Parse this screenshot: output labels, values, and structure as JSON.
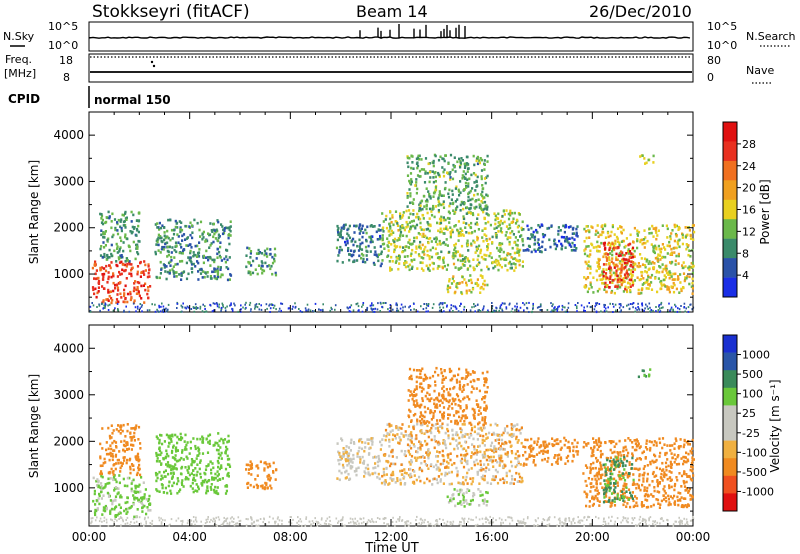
{
  "header": {
    "station": "Stokkseyri (fitACF)",
    "beam": "Beam 14",
    "date": "26/Dec/2010"
  },
  "panels": {
    "nsky_label": "N.Sky",
    "nsky_ticks": [
      "10^5",
      "10^0"
    ],
    "nsearch_label": "N.Search",
    "nsearch_ticks": [
      "10^5",
      "10^0"
    ],
    "freq_label": "Freq.",
    "freq_unit": "[MHz]",
    "freq_ticks": [
      "18",
      "8"
    ],
    "nave_label": "Nave",
    "nave_ticks": [
      "80",
      "0"
    ],
    "cpid_label": "CPID",
    "cpid_value": "normal 150"
  },
  "colors": {
    "power": [
      "#1a2ee6",
      "#2a52a8",
      "#3a8a6a",
      "#6ab84a",
      "#e8d020",
      "#f0a020",
      "#f07020",
      "#e83020",
      "#e01010"
    ],
    "velocity": [
      "#e01010",
      "#f05020",
      "#f08a20",
      "#f0b040",
      "#c8c8c0",
      "#c8c8c0",
      "#6ac83a",
      "#3a8a5a",
      "#2a56a8",
      "#1a30d0"
    ]
  },
  "chart_data": [
    {
      "type": "heatmap",
      "name": "power",
      "ylabel": "Slant Range [km]",
      "ylim": [
        180,
        4500
      ],
      "yticks": [
        "4000",
        "3000",
        "2000",
        "1000"
      ],
      "xlim": [
        "00:00",
        "24:00"
      ],
      "xticks": [
        "00:00",
        "04:00",
        "08:00",
        "12:00",
        "16:00",
        "20:00",
        "00:00"
      ],
      "colorbar": {
        "label": "Power [dB]",
        "range": [
          0,
          32
        ],
        "ticks": [
          "28",
          "24",
          "20",
          "16",
          "12",
          "8",
          "4"
        ]
      },
      "regions": [
        {
          "t": [
            0.1,
            2.4
          ],
          "r": [
            400,
            1300
          ],
          "v": 26
        },
        {
          "t": [
            0.4,
            2.0
          ],
          "r": [
            1300,
            2400
          ],
          "v": 10
        },
        {
          "t": [
            2.6,
            5.6
          ],
          "r": [
            900,
            2200
          ],
          "v": 9
        },
        {
          "t": [
            6.2,
            7.4
          ],
          "r": [
            1000,
            1600
          ],
          "v": 10
        },
        {
          "t": [
            9.8,
            11.6
          ],
          "r": [
            1200,
            2100
          ],
          "v": 7
        },
        {
          "t": [
            11.6,
            17.2
          ],
          "r": [
            1100,
            2400
          ],
          "v": 14
        },
        {
          "t": [
            12.6,
            15.8
          ],
          "r": [
            2400,
            3600
          ],
          "v": 11
        },
        {
          "t": [
            14.2,
            15.8
          ],
          "r": [
            600,
            1000
          ],
          "v": 16
        },
        {
          "t": [
            17.2,
            19.4
          ],
          "r": [
            1500,
            2100
          ],
          "v": 6
        },
        {
          "t": [
            19.6,
            24.0
          ],
          "r": [
            600,
            2100
          ],
          "v": 16
        },
        {
          "t": [
            20.4,
            21.6
          ],
          "r": [
            700,
            1700
          ],
          "v": 27
        },
        {
          "t": [
            21.8,
            22.4
          ],
          "r": [
            3400,
            3600
          ],
          "v": 14
        }
      ]
    },
    {
      "type": "heatmap",
      "name": "velocity",
      "ylabel": "Slant Range [km]",
      "ylim": [
        180,
        4500
      ],
      "yticks": [
        "4000",
        "3000",
        "2000",
        "1000"
      ],
      "xlim": [
        "00:00",
        "24:00"
      ],
      "xticks": [
        "00:00",
        "04:00",
        "08:00",
        "12:00",
        "16:00",
        "20:00",
        "00:00"
      ],
      "xlabel": "Time UT",
      "colorbar": {
        "label": "Velocity [m s⁻¹]",
        "ticks": [
          "1000",
          "500",
          "100",
          "25",
          "-25",
          "-100",
          "-500",
          "-1000"
        ]
      },
      "regions": [
        {
          "t": [
            0.1,
            2.4
          ],
          "r": [
            400,
            1300
          ],
          "v": 150
        },
        {
          "t": [
            0.4,
            2.0
          ],
          "r": [
            1300,
            2400
          ],
          "v": -300
        },
        {
          "t": [
            2.6,
            5.6
          ],
          "r": [
            900,
            2200
          ],
          "v": 200
        },
        {
          "t": [
            6.2,
            7.4
          ],
          "r": [
            1000,
            1600
          ],
          "v": -200
        },
        {
          "t": [
            9.8,
            11.6
          ],
          "r": [
            1200,
            2100
          ],
          "v": 0
        },
        {
          "t": [
            11.6,
            17.2
          ],
          "r": [
            1100,
            2400
          ],
          "v": -50
        },
        {
          "t": [
            12.6,
            15.8
          ],
          "r": [
            2400,
            3600
          ],
          "v": -300
        },
        {
          "t": [
            14.2,
            15.8
          ],
          "r": [
            600,
            1000
          ],
          "v": 80
        },
        {
          "t": [
            17.2,
            19.4
          ],
          "r": [
            1500,
            2100
          ],
          "v": -200
        },
        {
          "t": [
            19.6,
            24.0
          ],
          "r": [
            600,
            2100
          ],
          "v": -250
        },
        {
          "t": [
            20.4,
            21.6
          ],
          "r": [
            700,
            1700
          ],
          "v": 600
        },
        {
          "t": [
            21.8,
            22.4
          ],
          "r": [
            3400,
            3600
          ],
          "v": 600
        }
      ]
    }
  ]
}
